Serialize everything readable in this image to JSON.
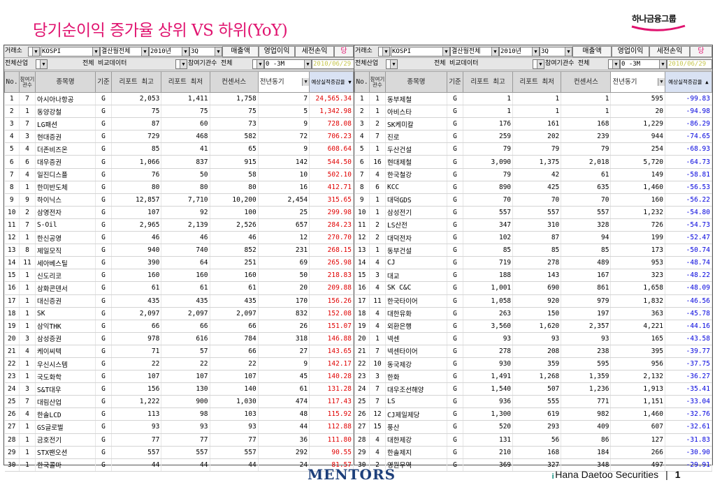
{
  "title": "당기순이익 증가율 상위 VS 하위(YoY)",
  "logo_text": "하나금융그룹",
  "footer": {
    "brand": "MENTORS",
    "company": "Hana Daetoo Securities",
    "separator": "|",
    "page": "1"
  },
  "toolbar": {
    "market_label": "거래소",
    "market_value": "KOSPI",
    "settle_value": "결산월전체",
    "year_value": "2010년",
    "quarter_value": "3Q",
    "btn_sales": "매출액",
    "btn_op": "영업이익",
    "btn_pretax": "세전손익",
    "btn_more": "당",
    "industry_label": "전체산업",
    "compare_label": "전체 비교데이터",
    "org_label": "참여기관수 전체",
    "period_value": "0 -3M",
    "date_value": "2010/06/29"
  },
  "headers": {
    "no": "No.",
    "org_count": "참여기관수",
    "name": "종목명",
    "basis": "기준",
    "report_high": "리포트 최고",
    "report_low": "리포트 최저",
    "consensus": "컨센서스",
    "prev_year_sel": "전년동기",
    "growth": "예상실적증감율"
  },
  "sort": {
    "left": "▼",
    "right": "▲"
  },
  "top_rows": [
    [
      "1",
      "7",
      "아시아나항공",
      "G",
      "2,053",
      "1,411",
      "1,758",
      "7",
      "24,565.34"
    ],
    [
      "2",
      "1",
      "동양강철",
      "G",
      "75",
      "75",
      "75",
      "5",
      "1,342.98"
    ],
    [
      "3",
      "7",
      "LG패션",
      "G",
      "87",
      "60",
      "73",
      "9",
      "728.08"
    ],
    [
      "4",
      "3",
      "현대증권",
      "G",
      "729",
      "468",
      "582",
      "72",
      "706.23"
    ],
    [
      "5",
      "4",
      "더존비즈온",
      "G",
      "85",
      "41",
      "65",
      "9",
      "608.64"
    ],
    [
      "6",
      "6",
      "대우증권",
      "G",
      "1,066",
      "837",
      "915",
      "142",
      "544.50"
    ],
    [
      "7",
      "4",
      "일진디스플",
      "G",
      "76",
      "50",
      "58",
      "10",
      "502.10"
    ],
    [
      "8",
      "1",
      "한미반도체",
      "G",
      "80",
      "80",
      "80",
      "16",
      "412.71"
    ],
    [
      "9",
      "9",
      "하이닉스",
      "G",
      "12,857",
      "7,710",
      "10,200",
      "2,454",
      "315.65"
    ],
    [
      "10",
      "2",
      "삼영전자",
      "G",
      "107",
      "92",
      "100",
      "25",
      "299.98"
    ],
    [
      "11",
      "7",
      "S-Oil",
      "G",
      "2,965",
      "2,139",
      "2,526",
      "657",
      "284.23"
    ],
    [
      "12",
      "1",
      "한신공영",
      "G",
      "46",
      "46",
      "46",
      "12",
      "270.70"
    ],
    [
      "13",
      "8",
      "제일모직",
      "G",
      "940",
      "740",
      "852",
      "231",
      "268.15"
    ],
    [
      "14",
      "11",
      "세아베스틸",
      "G",
      "390",
      "64",
      "251",
      "69",
      "265.98"
    ],
    [
      "15",
      "1",
      "신도리코",
      "G",
      "160",
      "160",
      "160",
      "50",
      "218.83"
    ],
    [
      "16",
      "1",
      "삼화콘덴서",
      "G",
      "61",
      "61",
      "61",
      "20",
      "209.88"
    ],
    [
      "17",
      "1",
      "대신증권",
      "G",
      "435",
      "435",
      "435",
      "170",
      "156.26"
    ],
    [
      "18",
      "1",
      "SK",
      "G",
      "2,097",
      "2,097",
      "2,097",
      "832",
      "152.08"
    ],
    [
      "19",
      "1",
      "삼익THK",
      "G",
      "66",
      "66",
      "66",
      "26",
      "151.07"
    ],
    [
      "20",
      "3",
      "삼성증권",
      "G",
      "978",
      "616",
      "784",
      "318",
      "146.88"
    ],
    [
      "21",
      "4",
      "케이씨텍",
      "G",
      "71",
      "57",
      "66",
      "27",
      "143.65"
    ],
    [
      "22",
      "1",
      "우신시스템",
      "G",
      "22",
      "22",
      "22",
      "9",
      "142.17"
    ],
    [
      "23",
      "1",
      "국도화학",
      "G",
      "107",
      "107",
      "107",
      "45",
      "140.28"
    ],
    [
      "24",
      "3",
      "S&T대우",
      "G",
      "156",
      "130",
      "140",
      "61",
      "131.28"
    ],
    [
      "25",
      "7",
      "대림산업",
      "G",
      "1,222",
      "900",
      "1,030",
      "474",
      "117.43"
    ],
    [
      "26",
      "4",
      "한솔LCD",
      "G",
      "113",
      "98",
      "103",
      "48",
      "115.92"
    ],
    [
      "27",
      "1",
      "GS글로벌",
      "G",
      "93",
      "93",
      "93",
      "44",
      "112.88"
    ],
    [
      "28",
      "1",
      "금호전기",
      "G",
      "77",
      "77",
      "77",
      "36",
      "111.80"
    ],
    [
      "29",
      "1",
      "STX팬오션",
      "G",
      "557",
      "557",
      "557",
      "292",
      "90.55"
    ],
    [
      "30",
      "1",
      "한국콜마",
      "G",
      "44",
      "44",
      "44",
      "24",
      "81.57"
    ]
  ],
  "bottom_rows": [
    [
      "1",
      "1",
      "동부제철",
      "G",
      "1",
      "1",
      "1",
      "595",
      "-99.83"
    ],
    [
      "2",
      "1",
      "아비스타",
      "G",
      "1",
      "1",
      "1",
      "20",
      "-94.98"
    ],
    [
      "3",
      "2",
      "SK케미칼",
      "G",
      "176",
      "161",
      "168",
      "1,229",
      "-86.29"
    ],
    [
      "4",
      "7",
      "진로",
      "G",
      "259",
      "202",
      "239",
      "944",
      "-74.65"
    ],
    [
      "5",
      "1",
      "두산건설",
      "G",
      "79",
      "79",
      "79",
      "254",
      "-68.93"
    ],
    [
      "6",
      "16",
      "현대제철",
      "G",
      "3,090",
      "1,375",
      "2,018",
      "5,720",
      "-64.73"
    ],
    [
      "7",
      "4",
      "한국철강",
      "G",
      "79",
      "42",
      "61",
      "149",
      "-58.81"
    ],
    [
      "8",
      "6",
      "KCC",
      "G",
      "890",
      "425",
      "635",
      "1,460",
      "-56.53"
    ],
    [
      "9",
      "1",
      "대덕GDS",
      "G",
      "70",
      "70",
      "70",
      "160",
      "-56.22"
    ],
    [
      "10",
      "1",
      "삼성전기",
      "G",
      "557",
      "557",
      "557",
      "1,232",
      "-54.80"
    ],
    [
      "11",
      "2",
      "LS산전",
      "G",
      "347",
      "310",
      "328",
      "726",
      "-54.73"
    ],
    [
      "12",
      "2",
      "대덕전자",
      "G",
      "102",
      "87",
      "94",
      "199",
      "-52.47"
    ],
    [
      "13",
      "1",
      "동부건설",
      "G",
      "85",
      "85",
      "85",
      "173",
      "-50.74"
    ],
    [
      "14",
      "4",
      "CJ",
      "G",
      "719",
      "278",
      "489",
      "953",
      "-48.74"
    ],
    [
      "15",
      "3",
      "대교",
      "G",
      "188",
      "143",
      "167",
      "323",
      "-48.22"
    ],
    [
      "16",
      "4",
      "SK C&C",
      "G",
      "1,001",
      "690",
      "861",
      "1,658",
      "-48.09"
    ],
    [
      "17",
      "11",
      "한국타이어",
      "G",
      "1,058",
      "920",
      "979",
      "1,832",
      "-46.56"
    ],
    [
      "18",
      "4",
      "대한유화",
      "G",
      "263",
      "150",
      "197",
      "363",
      "-45.78"
    ],
    [
      "19",
      "4",
      "외환은행",
      "G",
      "3,560",
      "1,620",
      "2,357",
      "4,221",
      "-44.16"
    ],
    [
      "20",
      "1",
      "넥센",
      "G",
      "93",
      "93",
      "93",
      "165",
      "-43.58"
    ],
    [
      "21",
      "7",
      "넥센타이어",
      "G",
      "278",
      "208",
      "238",
      "395",
      "-39.77"
    ],
    [
      "22",
      "10",
      "동국제강",
      "G",
      "930",
      "359",
      "595",
      "956",
      "-37.75"
    ],
    [
      "23",
      "3",
      "한화",
      "G",
      "1,491",
      "1,268",
      "1,359",
      "2,132",
      "-36.27"
    ],
    [
      "24",
      "7",
      "대우조선해양",
      "G",
      "1,540",
      "507",
      "1,236",
      "1,913",
      "-35.41"
    ],
    [
      "25",
      "7",
      "LS",
      "G",
      "936",
      "555",
      "771",
      "1,151",
      "-33.04"
    ],
    [
      "26",
      "12",
      "CJ제일제당",
      "G",
      "1,300",
      "619",
      "982",
      "1,460",
      "-32.76"
    ],
    [
      "27",
      "15",
      "풍산",
      "G",
      "520",
      "293",
      "409",
      "607",
      "-32.61"
    ],
    [
      "28",
      "4",
      "대한제강",
      "G",
      "131",
      "56",
      "86",
      "127",
      "-31.83"
    ],
    [
      "29",
      "4",
      "한솔제지",
      "G",
      "210",
      "168",
      "184",
      "266",
      "-30.90"
    ],
    [
      "30",
      "2",
      "영원무역",
      "G",
      "369",
      "327",
      "348",
      "497",
      "-29.91"
    ]
  ],
  "colors": {
    "title": "#e0136f",
    "positive": "#e00000",
    "negative": "#0000dd",
    "header_bg": "#d9d9d9"
  }
}
